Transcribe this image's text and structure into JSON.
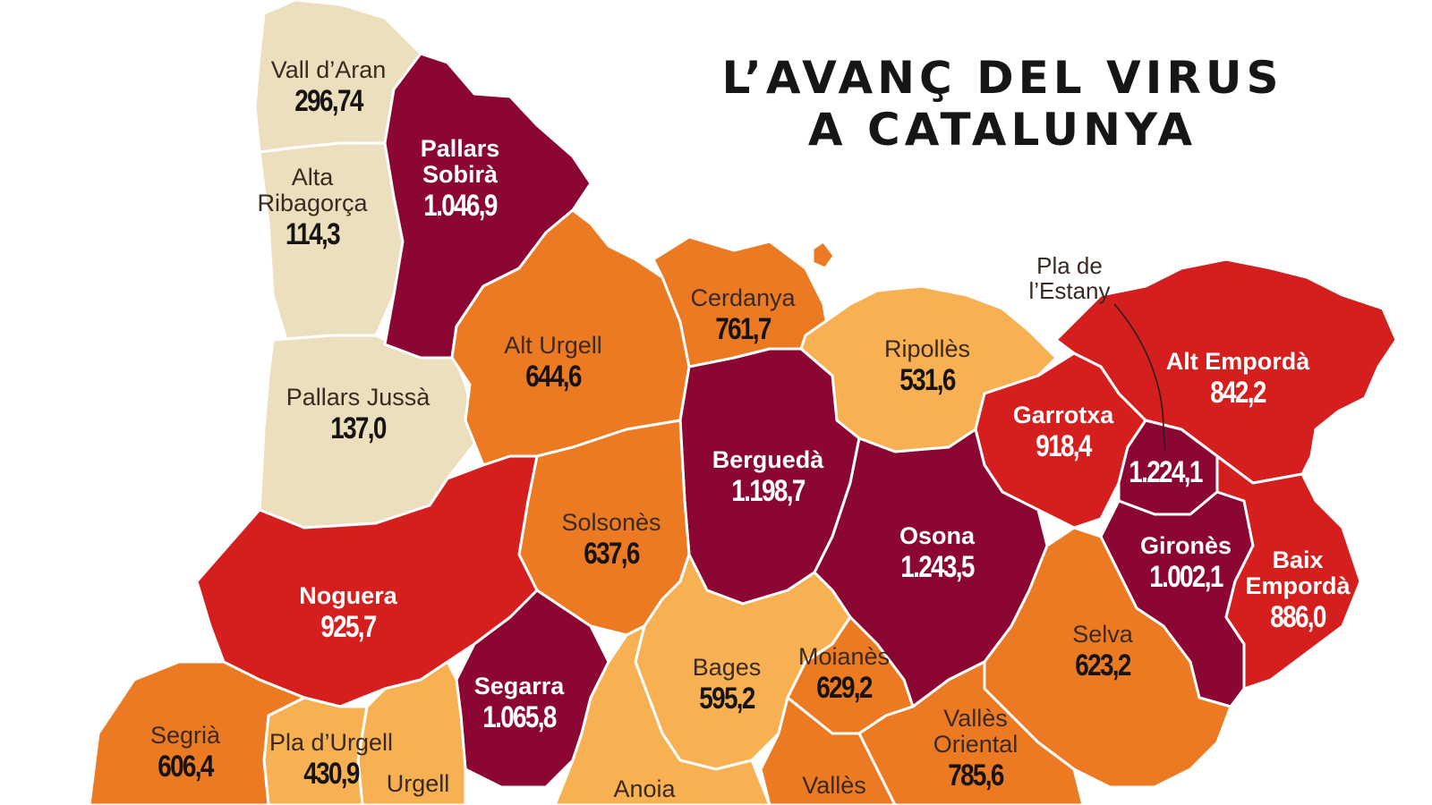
{
  "title": {
    "line1": "L’AVANÇ DEL VIRUS",
    "line2": "A CATALUNYA"
  },
  "colors": {
    "beige": "#ecdfbd",
    "light_orange": "#f7b153",
    "orange": "#ec7a22",
    "red": "#d41f1e",
    "maroon": "#8b0632",
    "border": "#ffffff"
  },
  "callout": {
    "line1": "Pla de",
    "line2": "l’Estany"
  },
  "regions": [
    {
      "name": "Vall d’Aran",
      "value": "296,74"
    },
    {
      "name_lines": [
        "Pallars",
        "Sobirà"
      ],
      "value": "1.046,9"
    },
    {
      "name_lines": [
        "Alta",
        "Ribagorça"
      ],
      "value": "114,3"
    },
    {
      "name": "Pallars Jussà",
      "value": "137,0"
    },
    {
      "name": "Alt Urgell",
      "value": "644,6"
    },
    {
      "name": "Cerdanya",
      "value": "761,7"
    },
    {
      "name": "Ripollès",
      "value": "531,6"
    },
    {
      "name": "Alt Empordà",
      "value": "842,2"
    },
    {
      "name": "Garrotxa",
      "value": "918,4"
    },
    {
      "name": "Pla de l’Estany",
      "value": "1.224,1"
    },
    {
      "name": "Berguedà",
      "value": "1.198,7"
    },
    {
      "name": "Solsonès",
      "value": "637,6"
    },
    {
      "name": "Osona",
      "value": "1.243,5"
    },
    {
      "name": "Gironès",
      "value": "1.002,1"
    },
    {
      "name_lines": [
        "Baix",
        "Empordà"
      ],
      "value": "886,0"
    },
    {
      "name": "Noguera",
      "value": "925,7"
    },
    {
      "name": "Selva",
      "value": "623,2"
    },
    {
      "name": "Bages",
      "value": "595,2"
    },
    {
      "name": "Moianès",
      "value": "629,2"
    },
    {
      "name": "Segarra",
      "value": "1.065,8"
    },
    {
      "name_lines": [
        "Vallès",
        "Oriental"
      ],
      "value": "785,6"
    },
    {
      "name": "Segrià",
      "value": "606,4"
    },
    {
      "name": "Pla d’Urgell",
      "value": "430,9"
    },
    {
      "name": "Urgell",
      "value": ""
    },
    {
      "name": "Anoia",
      "value": ""
    },
    {
      "name": "Vallès",
      "value": ""
    }
  ]
}
